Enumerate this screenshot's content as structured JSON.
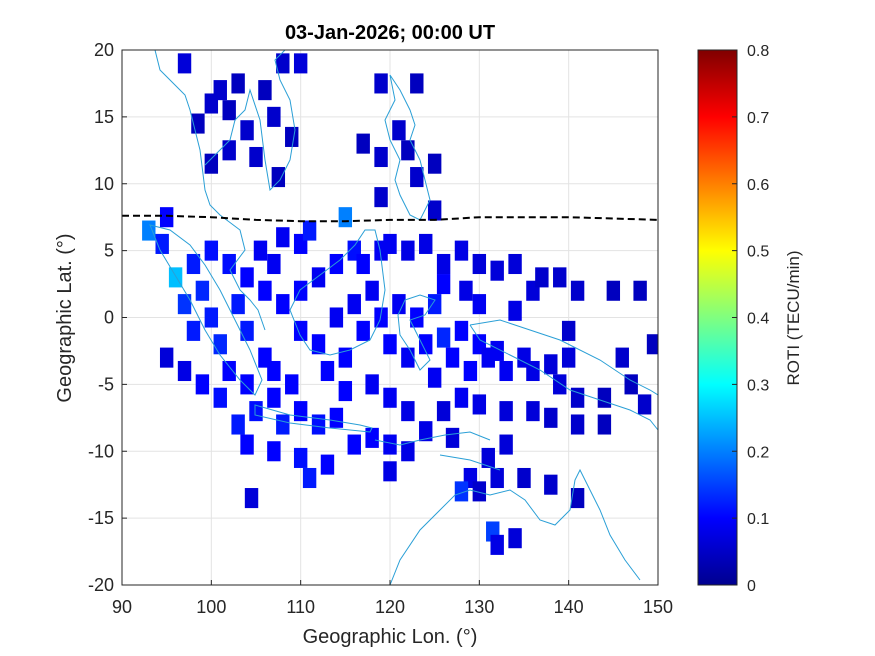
{
  "chart_data": {
    "type": "heatmap",
    "title": "03-Jan-2026; 00:00 UT",
    "xlabel": "Geographic Lon. (°)",
    "ylabel": "Geographic Lat. (°)",
    "xlim": [
      90,
      150
    ],
    "ylim": [
      -20,
      20
    ],
    "xticks": [
      "90",
      "100",
      "110",
      "120",
      "130",
      "140",
      "150"
    ],
    "yticks": [
      "20",
      "15",
      "10",
      "5",
      "0",
      "-5",
      "-10",
      "-15",
      "-20"
    ],
    "grid": true,
    "colorbar": {
      "label": "ROTI (TECU/min)",
      "range": [
        0,
        0.8
      ],
      "ticks": [
        "0",
        "0.1",
        "0.2",
        "0.3",
        "0.4",
        "0.5",
        "0.6",
        "0.7",
        "0.8"
      ],
      "colormap": "jet"
    },
    "magnetic_equator": {
      "style": "dashed",
      "color": "#000000",
      "points": [
        [
          90,
          7.6
        ],
        [
          95,
          7.6
        ],
        [
          100,
          7.5
        ],
        [
          105,
          7.3
        ],
        [
          110,
          7.2
        ],
        [
          115,
          7.2
        ],
        [
          120,
          7.3
        ],
        [
          125,
          7.3
        ],
        [
          130,
          7.5
        ],
        [
          135,
          7.5
        ],
        [
          140,
          7.5
        ],
        [
          145,
          7.4
        ],
        [
          150,
          7.3
        ]
      ]
    },
    "roti_cells": [
      {
        "lon": 97,
        "lat": 19,
        "roti": 0.07
      },
      {
        "lon": 101,
        "lat": 17,
        "roti": 0.06
      },
      {
        "lon": 103,
        "lat": 17.5,
        "roti": 0.05
      },
      {
        "lon": 100,
        "lat": 16,
        "roti": 0.06
      },
      {
        "lon": 102,
        "lat": 15.5,
        "roti": 0.05
      },
      {
        "lon": 98.5,
        "lat": 14.5,
        "roti": 0.05
      },
      {
        "lon": 104,
        "lat": 14,
        "roti": 0.06
      },
      {
        "lon": 106,
        "lat": 17,
        "roti": 0.05
      },
      {
        "lon": 108,
        "lat": 19,
        "roti": 0.06
      },
      {
        "lon": 107,
        "lat": 15,
        "roti": 0.06
      },
      {
        "lon": 109,
        "lat": 13.5,
        "roti": 0.05
      },
      {
        "lon": 110,
        "lat": 19,
        "roti": 0.07
      },
      {
        "lon": 102,
        "lat": 12.5,
        "roti": 0.06
      },
      {
        "lon": 100,
        "lat": 11.5,
        "roti": 0.05
      },
      {
        "lon": 105,
        "lat": 12,
        "roti": 0.06
      },
      {
        "lon": 107.5,
        "lat": 10.5,
        "roti": 0.05
      },
      {
        "lon": 119,
        "lat": 17.5,
        "roti": 0.06
      },
      {
        "lon": 123,
        "lat": 17.5,
        "roti": 0.05
      },
      {
        "lon": 121,
        "lat": 14,
        "roti": 0.06
      },
      {
        "lon": 117,
        "lat": 13,
        "roti": 0.05
      },
      {
        "lon": 119,
        "lat": 12,
        "roti": 0.06
      },
      {
        "lon": 122,
        "lat": 12.5,
        "roti": 0.05
      },
      {
        "lon": 123,
        "lat": 10.5,
        "roti": 0.06
      },
      {
        "lon": 125,
        "lat": 11.5,
        "roti": 0.05
      },
      {
        "lon": 119,
        "lat": 9,
        "roti": 0.06
      },
      {
        "lon": 125,
        "lat": 8,
        "roti": 0.06
      },
      {
        "lon": 93,
        "lat": 6.5,
        "roti": 0.2
      },
      {
        "lon": 94.5,
        "lat": 5.5,
        "roti": 0.12
      },
      {
        "lon": 95,
        "lat": 7.5,
        "roti": 0.1
      },
      {
        "lon": 96,
        "lat": 3,
        "roti": 0.25
      },
      {
        "lon": 97,
        "lat": 1,
        "roti": 0.14
      },
      {
        "lon": 98,
        "lat": 4,
        "roti": 0.12
      },
      {
        "lon": 99,
        "lat": 2,
        "roti": 0.13
      },
      {
        "lon": 98,
        "lat": -1,
        "roti": 0.12
      },
      {
        "lon": 100,
        "lat": 0,
        "roti": 0.12
      },
      {
        "lon": 101,
        "lat": -2,
        "roti": 0.13
      },
      {
        "lon": 100,
        "lat": 5,
        "roti": 0.11
      },
      {
        "lon": 102,
        "lat": 4,
        "roti": 0.11
      },
      {
        "lon": 103,
        "lat": 1,
        "roti": 0.12
      },
      {
        "lon": 102,
        "lat": -4,
        "roti": 0.1
      },
      {
        "lon": 104,
        "lat": -1,
        "roti": 0.12
      },
      {
        "lon": 104,
        "lat": -5,
        "roti": 0.1
      },
      {
        "lon": 106,
        "lat": -3,
        "roti": 0.1
      },
      {
        "lon": 105,
        "lat": -7,
        "roti": 0.11
      },
      {
        "lon": 103,
        "lat": -8,
        "roti": 0.12
      },
      {
        "lon": 104,
        "lat": -9.5,
        "roti": 0.1
      },
      {
        "lon": 107,
        "lat": -6,
        "roti": 0.1
      },
      {
        "lon": 108,
        "lat": -8,
        "roti": 0.12
      },
      {
        "lon": 110,
        "lat": -7,
        "roti": 0.1
      },
      {
        "lon": 112,
        "lat": -8,
        "roti": 0.11
      },
      {
        "lon": 114,
        "lat": -7.5,
        "roti": 0.1
      },
      {
        "lon": 107,
        "lat": -10,
        "roti": 0.1
      },
      {
        "lon": 110,
        "lat": -10.5,
        "roti": 0.11
      },
      {
        "lon": 113,
        "lat": -11,
        "roti": 0.1
      },
      {
        "lon": 111,
        "lat": -12,
        "roti": 0.12
      },
      {
        "lon": 116,
        "lat": -9.5,
        "roti": 0.1
      },
      {
        "lon": 118,
        "lat": -9,
        "roti": 0.1
      },
      {
        "lon": 120,
        "lat": -9.5,
        "roti": 0.09
      },
      {
        "lon": 122,
        "lat": -10,
        "roti": 0.08
      },
      {
        "lon": 120,
        "lat": -11.5,
        "roti": 0.08
      },
      {
        "lon": 124,
        "lat": -8.5,
        "roti": 0.08
      },
      {
        "lon": 127,
        "lat": -9,
        "roti": 0.07
      },
      {
        "lon": 126,
        "lat": -7,
        "roti": 0.07
      },
      {
        "lon": 104,
        "lat": 3,
        "roti": 0.1
      },
      {
        "lon": 106,
        "lat": 2,
        "roti": 0.1
      },
      {
        "lon": 107,
        "lat": 4,
        "roti": 0.09
      },
      {
        "lon": 108,
        "lat": 1,
        "roti": 0.1
      },
      {
        "lon": 110,
        "lat": 2,
        "roti": 0.1
      },
      {
        "lon": 112,
        "lat": 3,
        "roti": 0.09
      },
      {
        "lon": 110,
        "lat": -1,
        "roti": 0.1
      },
      {
        "lon": 112,
        "lat": -2,
        "roti": 0.1
      },
      {
        "lon": 114,
        "lat": 0,
        "roti": 0.09
      },
      {
        "lon": 113,
        "lat": -4,
        "roti": 0.1
      },
      {
        "lon": 115,
        "lat": -3,
        "roti": 0.1
      },
      {
        "lon": 116,
        "lat": 1,
        "roti": 0.09
      },
      {
        "lon": 117,
        "lat": -1,
        "roti": 0.1
      },
      {
        "lon": 118,
        "lat": 2,
        "roti": 0.09
      },
      {
        "lon": 116,
        "lat": 5,
        "roti": 0.11
      },
      {
        "lon": 115,
        "lat": 7.5,
        "roti": 0.2
      },
      {
        "lon": 114,
        "lat": 4,
        "roti": 0.1
      },
      {
        "lon": 110,
        "lat": 5.5,
        "roti": 0.1
      },
      {
        "lon": 111,
        "lat": 6.5,
        "roti": 0.12
      },
      {
        "lon": 108,
        "lat": 6,
        "roti": 0.09
      },
      {
        "lon": 117,
        "lat": 4,
        "roti": 0.1
      },
      {
        "lon": 119,
        "lat": 5,
        "roti": 0.09
      },
      {
        "lon": 119,
        "lat": 0,
        "roti": 0.1
      },
      {
        "lon": 120,
        "lat": -2,
        "roti": 0.1
      },
      {
        "lon": 121,
        "lat": 1,
        "roti": 0.09
      },
      {
        "lon": 122,
        "lat": -3,
        "roti": 0.09
      },
      {
        "lon": 123,
        "lat": 0,
        "roti": 0.1
      },
      {
        "lon": 124,
        "lat": -2,
        "roti": 0.1
      },
      {
        "lon": 125,
        "lat": 1,
        "roti": 0.12
      },
      {
        "lon": 126,
        "lat": -1.5,
        "roti": 0.13
      },
      {
        "lon": 127,
        "lat": -3,
        "roti": 0.1
      },
      {
        "lon": 128,
        "lat": -1,
        "roti": 0.1
      },
      {
        "lon": 130,
        "lat": -2,
        "roti": 0.1
      },
      {
        "lon": 129,
        "lat": -4,
        "roti": 0.1
      },
      {
        "lon": 131,
        "lat": -3,
        "roti": 0.09
      },
      {
        "lon": 132,
        "lat": -2.5,
        "roti": 0.09
      },
      {
        "lon": 133,
        "lat": -4,
        "roti": 0.09
      },
      {
        "lon": 135,
        "lat": -3,
        "roti": 0.08
      },
      {
        "lon": 136,
        "lat": -4,
        "roti": 0.08
      },
      {
        "lon": 138,
        "lat": -3.5,
        "roti": 0.07
      },
      {
        "lon": 139,
        "lat": -5,
        "roti": 0.07
      },
      {
        "lon": 140,
        "lat": -3,
        "roti": 0.07
      },
      {
        "lon": 141,
        "lat": -6,
        "roti": 0.06
      },
      {
        "lon": 144,
        "lat": -6,
        "roti": 0.05
      },
      {
        "lon": 147,
        "lat": -5,
        "roti": 0.05
      },
      {
        "lon": 148.5,
        "lat": -6.5,
        "roti": 0.06
      },
      {
        "lon": 144,
        "lat": -8,
        "roti": 0.05
      },
      {
        "lon": 141,
        "lat": -8,
        "roti": 0.06
      },
      {
        "lon": 138,
        "lat": -7.5,
        "roti": 0.06
      },
      {
        "lon": 136,
        "lat": -7,
        "roti": 0.07
      },
      {
        "lon": 133,
        "lat": -7,
        "roti": 0.07
      },
      {
        "lon": 130,
        "lat": -6.5,
        "roti": 0.08
      },
      {
        "lon": 128,
        "lat": -6,
        "roti": 0.09
      },
      {
        "lon": 140,
        "lat": -1,
        "roti": 0.06
      },
      {
        "lon": 146,
        "lat": -3,
        "roti": 0.06
      },
      {
        "lon": 149.5,
        "lat": -2,
        "roti": 0.05
      },
      {
        "lon": 133,
        "lat": -9.5,
        "roti": 0.07
      },
      {
        "lon": 131,
        "lat": -10.5,
        "roti": 0.07
      },
      {
        "lon": 129,
        "lat": -12,
        "roti": 0.08
      },
      {
        "lon": 130,
        "lat": -13,
        "roti": 0.06
      },
      {
        "lon": 132,
        "lat": -12,
        "roti": 0.07
      },
      {
        "lon": 135,
        "lat": -12,
        "roti": 0.06
      },
      {
        "lon": 138,
        "lat": -12.5,
        "roti": 0.06
      },
      {
        "lon": 141,
        "lat": -13.5,
        "roti": 0.05
      },
      {
        "lon": 128,
        "lat": -13,
        "roti": 0.14
      },
      {
        "lon": 131.5,
        "lat": -16,
        "roti": 0.15
      },
      {
        "lon": 134,
        "lat": -16.5,
        "roti": 0.07
      },
      {
        "lon": 132,
        "lat": -17,
        "roti": 0.08
      },
      {
        "lon": 104.5,
        "lat": -13.5,
        "roti": 0.07
      },
      {
        "lon": 95,
        "lat": -3,
        "roti": 0.07
      },
      {
        "lon": 97,
        "lat": -4,
        "roti": 0.08
      },
      {
        "lon": 120,
        "lat": 5.5,
        "roti": 0.09
      },
      {
        "lon": 122,
        "lat": 5,
        "roti": 0.08
      },
      {
        "lon": 124,
        "lat": 5.5,
        "roti": 0.08
      },
      {
        "lon": 126,
        "lat": 4,
        "roti": 0.08
      },
      {
        "lon": 128,
        "lat": 5,
        "roti": 0.08
      },
      {
        "lon": 130,
        "lat": 4,
        "roti": 0.07
      },
      {
        "lon": 132,
        "lat": 3.5,
        "roti": 0.07
      },
      {
        "lon": 134,
        "lat": 4,
        "roti": 0.07
      },
      {
        "lon": 136,
        "lat": 2,
        "roti": 0.07
      },
      {
        "lon": 137,
        "lat": 3,
        "roti": 0.06
      },
      {
        "lon": 139,
        "lat": 3,
        "roti": 0.06
      },
      {
        "lon": 141,
        "lat": 2,
        "roti": 0.06
      },
      {
        "lon": 145,
        "lat": 2,
        "roti": 0.05
      },
      {
        "lon": 148,
        "lat": 2,
        "roti": 0.05
      },
      {
        "lon": 130,
        "lat": 1,
        "roti": 0.09
      },
      {
        "lon": 128.5,
        "lat": 2,
        "roti": 0.08
      },
      {
        "lon": 134,
        "lat": 0.5,
        "roti": 0.08
      },
      {
        "lon": 107,
        "lat": -4,
        "roti": 0.1
      },
      {
        "lon": 109,
        "lat": -5,
        "roti": 0.1
      },
      {
        "lon": 115,
        "lat": -5.5,
        "roti": 0.1
      },
      {
        "lon": 118,
        "lat": -5,
        "roti": 0.09
      },
      {
        "lon": 120,
        "lat": -6,
        "roti": 0.09
      },
      {
        "lon": 122,
        "lat": -7,
        "roti": 0.08
      },
      {
        "lon": 105.5,
        "lat": 5,
        "roti": 0.09
      },
      {
        "lon": 126,
        "lat": 2.5,
        "roti": 0.1
      },
      {
        "lon": 125,
        "lat": -4.5,
        "roti": 0.09
      },
      {
        "lon": 101,
        "lat": -6,
        "roti": 0.11
      },
      {
        "lon": 99,
        "lat": -5,
        "roti": 0.1
      }
    ]
  }
}
